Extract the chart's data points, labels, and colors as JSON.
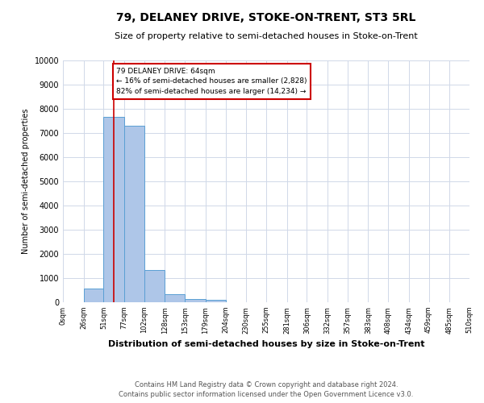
{
  "title": "79, DELANEY DRIVE, STOKE-ON-TRENT, ST3 5RL",
  "subtitle": "Size of property relative to semi-detached houses in Stoke-on-Trent",
  "xlabel": "Distribution of semi-detached houses by size in Stoke-on-Trent",
  "ylabel": "Number of semi-detached properties",
  "footnote1": "Contains HM Land Registry data © Crown copyright and database right 2024.",
  "footnote2": "Contains public sector information licensed under the Open Government Licence v3.0.",
  "property_size": 64,
  "annotation_line1": "79 DELANEY DRIVE: 64sqm",
  "annotation_line2": "← 16% of semi-detached houses are smaller (2,828)",
  "annotation_line3": "82% of semi-detached houses are larger (14,234) →",
  "bar_edges": [
    0,
    26,
    51,
    77,
    102,
    128,
    153,
    179,
    204,
    230,
    255,
    281,
    306,
    332,
    357,
    383,
    408,
    434,
    459,
    485,
    510
  ],
  "bar_heights": [
    0,
    580,
    7650,
    7300,
    1350,
    320,
    130,
    90,
    0,
    0,
    0,
    0,
    0,
    0,
    0,
    0,
    0,
    0,
    0,
    0
  ],
  "bar_color": "#aec6e8",
  "bar_edge_color": "#5a9fd4",
  "red_line_color": "#cc0000",
  "annotation_box_color": "#cc0000",
  "background_color": "#ffffff",
  "grid_color": "#d0d8e8",
  "ylim": [
    0,
    10000
  ],
  "yticks": [
    0,
    1000,
    2000,
    3000,
    4000,
    5000,
    6000,
    7000,
    8000,
    9000,
    10000
  ],
  "xtick_labels": [
    "0sqm",
    "26sqm",
    "51sqm",
    "77sqm",
    "102sqm",
    "128sqm",
    "153sqm",
    "179sqm",
    "204sqm",
    "230sqm",
    "255sqm",
    "281sqm",
    "306sqm",
    "332sqm",
    "357sqm",
    "383sqm",
    "408sqm",
    "434sqm",
    "459sqm",
    "485sqm",
    "510sqm"
  ],
  "title_fontsize": 10,
  "subtitle_fontsize": 8,
  "xlabel_fontsize": 8,
  "ylabel_fontsize": 7,
  "xtick_fontsize": 6,
  "ytick_fontsize": 7,
  "footnote_fontsize": 6
}
